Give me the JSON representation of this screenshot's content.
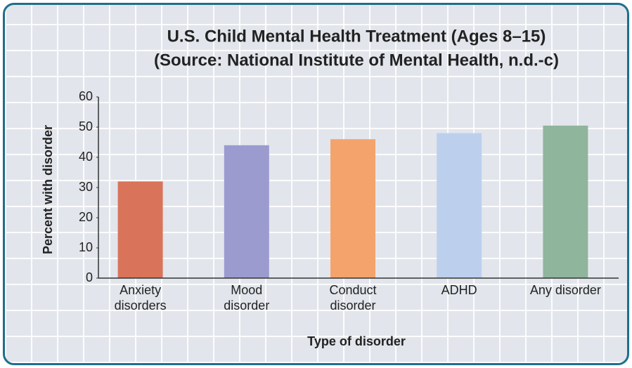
{
  "chart_data": {
    "type": "bar",
    "title": "U.S. Child Mental Health Treatment (Ages 8–15)",
    "subtitle": "(Source: National Institute of Mental Health, n.d.-c)",
    "x_label": "Type of disorder",
    "y_label": "Percent with disorder",
    "categories": [
      "Anxiety\ndisorders",
      "Mood\ndisorder",
      "Conduct\ndisorder",
      "ADHD",
      "Any disorder"
    ],
    "values": [
      32,
      44,
      46,
      48,
      50.5
    ],
    "colors": [
      "#d9735a",
      "#9b9bd0",
      "#f4a36c",
      "#bcd0ee",
      "#8fb59c"
    ],
    "ylim": [
      0,
      60
    ],
    "yticks": [
      0,
      10,
      20,
      30,
      40,
      50,
      60
    ]
  }
}
